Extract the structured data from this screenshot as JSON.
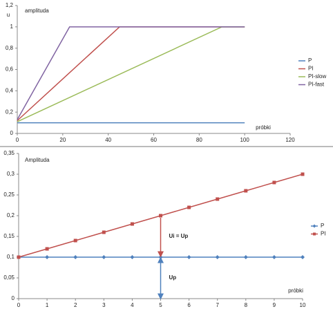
{
  "charts": [
    {
      "chart_data": {
        "type": "line",
        "title": "amplituda",
        "ylabel": "u",
        "xlabel": "próbki",
        "xlim": [
          0,
          120
        ],
        "xticks": [
          0,
          20,
          40,
          60,
          80,
          100,
          120
        ],
        "ylim": [
          0,
          1.2
        ],
        "yticks": [
          0,
          {
            "value": 0.2,
            "label": "0,2"
          },
          {
            "value": 0.4,
            "label": "0,4"
          },
          {
            "value": 0.6,
            "label": "0,6"
          },
          {
            "value": 0.8,
            "label": "0,8"
          },
          1,
          {
            "value": 1.2,
            "label": "1,2"
          }
        ],
        "legend": "right",
        "series": [
          {
            "name": "P",
            "color": "#4f81bd",
            "x": [
              0,
              100
            ],
            "values": [
              0.1,
              0.1
            ]
          },
          {
            "name": "PI",
            "color": "#c0504d",
            "x": [
              0,
              45,
              100
            ],
            "values": [
              0.12,
              1,
              1
            ]
          },
          {
            "name": "PI-slow",
            "color": "#9bbb59",
            "x": [
              0,
              90,
              100
            ],
            "values": [
              0.11,
              1,
              1
            ]
          },
          {
            "name": "PI-fast",
            "color": "#8064a2",
            "x": [
              0,
              23,
              100
            ],
            "values": [
              0.13,
              1,
              1
            ]
          }
        ]
      }
    },
    {
      "chart_data": {
        "type": "line",
        "title": "Amplituda",
        "xlabel": "próbki",
        "xlim": [
          0,
          10
        ],
        "xticks": [
          0,
          1,
          2,
          3,
          4,
          5,
          6,
          7,
          8,
          9,
          10
        ],
        "ylim": [
          0,
          0.35
        ],
        "yticks": [
          0,
          {
            "value": 0.05,
            "label": "0,05"
          },
          {
            "value": 0.1,
            "label": "0,1"
          },
          {
            "value": 0.15,
            "label": "0,15"
          },
          {
            "value": 0.2,
            "label": "0,2"
          },
          {
            "value": 0.25,
            "label": "0,25"
          },
          {
            "value": 0.3,
            "label": "0,3"
          },
          {
            "value": 0.35,
            "label": "0,35"
          }
        ],
        "legend": "right",
        "annotations": [
          "Ui = Up",
          "Up"
        ],
        "series": [
          {
            "name": "P",
            "color": "#4f81bd",
            "marker": "diamond",
            "x": [
              0,
              1,
              2,
              3,
              4,
              5,
              6,
              7,
              8,
              9,
              10
            ],
            "values": [
              0.1,
              0.1,
              0.1,
              0.1,
              0.1,
              0.1,
              0.1,
              0.1,
              0.1,
              0.1,
              0.1
            ]
          },
          {
            "name": "PI",
            "color": "#c0504d",
            "marker": "square",
            "x": [
              0,
              1,
              2,
              3,
              4,
              5,
              6,
              7,
              8,
              9,
              10
            ],
            "values": [
              0.1,
              0.12,
              0.14,
              0.16,
              0.18,
              0.2,
              0.22,
              0.24,
              0.26,
              0.28,
              0.3
            ]
          }
        ]
      }
    }
  ]
}
